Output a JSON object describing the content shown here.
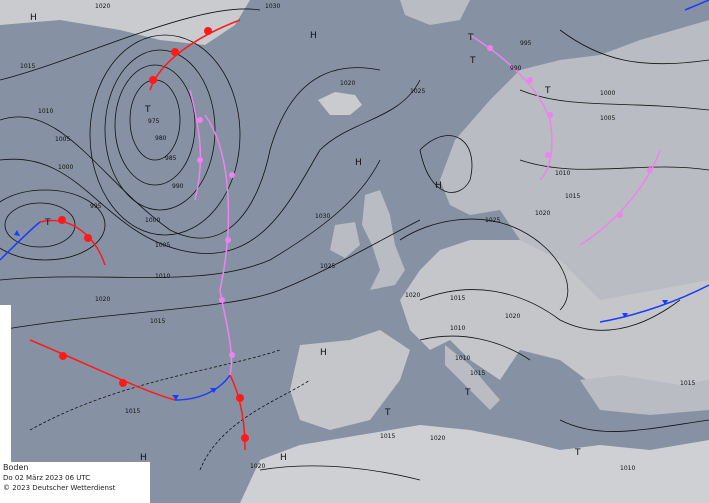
{
  "map": {
    "type": "surface-analysis",
    "colors": {
      "sea": "#8691a3",
      "land": "#b9bcc2",
      "land_high": "#d6d7da",
      "isobar": "#111111",
      "cold_front": "#1a3cff",
      "warm_front": "#ff1a1a",
      "occlusion": "#ee82ee"
    },
    "highs": [
      "H",
      "H",
      "H",
      "H",
      "H",
      "H",
      "H"
    ],
    "lows": [
      "T",
      "T",
      "T",
      "T",
      "T",
      "T",
      "T",
      "T"
    ],
    "isobar_labels": [
      "1020",
      "1030",
      "1015",
      "1010",
      "1005",
      "1000",
      "995",
      "990",
      "985",
      "980",
      "975",
      "1000",
      "1005",
      "1010",
      "1015",
      "1020",
      "1025",
      "1030",
      "1020",
      "1025",
      "1020",
      "1015",
      "1010",
      "990",
      "995",
      "1000",
      "1005",
      "1010",
      "1015",
      "1020",
      "1025",
      "1020",
      "1015",
      "1010",
      "1020",
      "1010",
      "1015",
      "1015",
      "1015",
      "1020"
    ]
  },
  "legend": {
    "level": "Boden",
    "datetime": "Do 02 März 2023 06 UTC",
    "copyright": "© 2023 Deutscher Wetterdienst"
  }
}
